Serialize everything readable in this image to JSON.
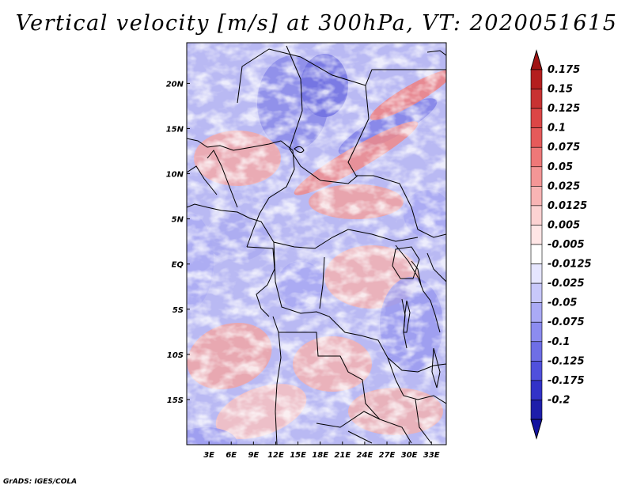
{
  "title": "Vertical velocity [m/s] at 300hPa, VT: 2020051615",
  "credit": "GrADS: IGES/COLA",
  "map": {
    "variable": "Vertical velocity",
    "units": "m/s",
    "level": "300hPa",
    "valid_time": "2020051615",
    "lon_range": [
      0,
      35
    ],
    "lat_range": [
      -20,
      24.5
    ],
    "lat_ticks": [
      {
        "lat": 20,
        "label": "20N"
      },
      {
        "lat": 15,
        "label": "15N"
      },
      {
        "lat": 10,
        "label": "10N"
      },
      {
        "lat": 5,
        "label": "5N"
      },
      {
        "lat": 0,
        "label": "EQ"
      },
      {
        "lat": -5,
        "label": "5S"
      },
      {
        "lat": -10,
        "label": "10S"
      },
      {
        "lat": -15,
        "label": "15S"
      }
    ],
    "lon_ticks": [
      {
        "lon": 3,
        "label": "3E"
      },
      {
        "lon": 6,
        "label": "6E"
      },
      {
        "lon": 9,
        "label": "9E"
      },
      {
        "lon": 12,
        "label": "12E"
      },
      {
        "lon": 15,
        "label": "15E"
      },
      {
        "lon": 18,
        "label": "18E"
      },
      {
        "lon": 21,
        "label": "21E"
      },
      {
        "lon": 24,
        "label": "24E"
      },
      {
        "lon": 27,
        "label": "27E"
      },
      {
        "lon": 30,
        "label": "30E"
      },
      {
        "lon": 33,
        "label": "33E"
      }
    ]
  },
  "colorbar": {
    "levels": [
      {
        "label": "0.175",
        "color": "#b41e1e"
      },
      {
        "label": "0.15",
        "color": "#c83232"
      },
      {
        "label": "0.125",
        "color": "#dc4646"
      },
      {
        "label": "0.1",
        "color": "#e65a5a"
      },
      {
        "label": "0.075",
        "color": "#ee7878"
      },
      {
        "label": "0.05",
        "color": "#f49696"
      },
      {
        "label": "0.025",
        "color": "#f8b4b4"
      },
      {
        "label": "0.0125",
        "color": "#fcd2d2"
      },
      {
        "label": "0.005",
        "color": "#ffe6e6"
      },
      {
        "label": "-0.005",
        "color": "#ffffff"
      },
      {
        "label": "-0.0125",
        "color": "#e6e6ff"
      },
      {
        "label": "-0.025",
        "color": "#c8c8fa"
      },
      {
        "label": "-0.05",
        "color": "#aaaaf5"
      },
      {
        "label": "-0.075",
        "color": "#8c8cf0"
      },
      {
        "label": "-0.1",
        "color": "#6e6ee6"
      },
      {
        "label": "-0.125",
        "color": "#5050dc"
      },
      {
        "label": "-0.175",
        "color": "#3232c8"
      },
      {
        "label": "-0.2",
        "color": "#1e1eaa"
      }
    ],
    "top_arrow_color": "#a01414",
    "bottom_arrow_color": "#1414a0"
  }
}
